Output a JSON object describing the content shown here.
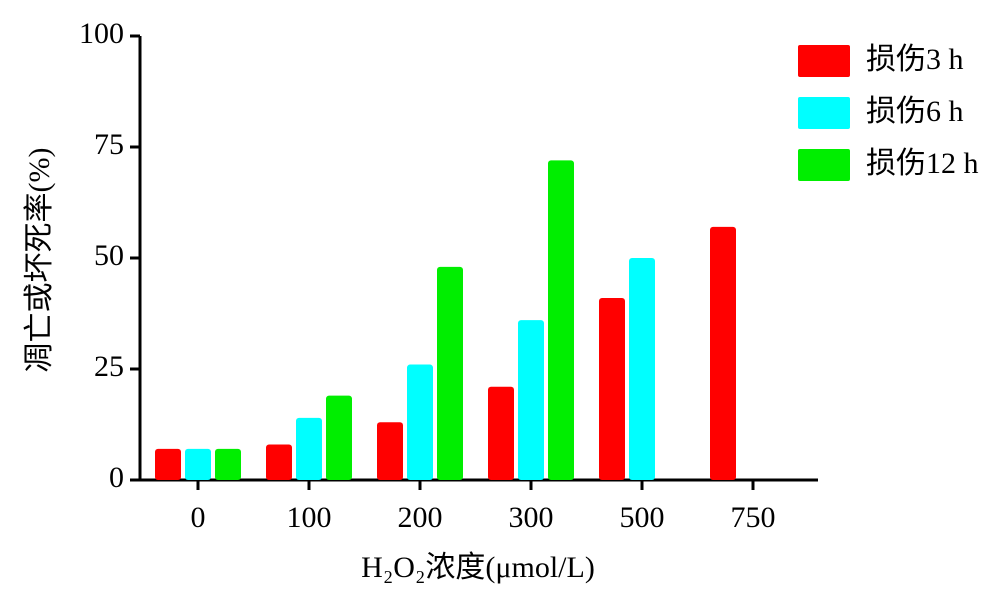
{
  "chart_data": {
    "type": "bar",
    "x_label": "H₂O₂浓度(μmol/L)",
    "y_label": "凋亡或坏死率(%)",
    "categories": [
      "0",
      "100",
      "200",
      "300",
      "500",
      "750"
    ],
    "series": [
      {
        "name": "损伤3 h",
        "color": "#ff0000",
        "values": [
          7,
          8,
          13,
          21,
          41,
          57
        ]
      },
      {
        "name": "损伤6 h",
        "color": "#00ffff",
        "values": [
          7,
          14,
          26,
          36,
          50,
          null
        ]
      },
      {
        "name": "损伤12 h",
        "color": "#00ee00",
        "values": [
          7,
          19,
          48,
          72,
          null,
          null
        ]
      }
    ],
    "ylim": [
      0,
      100
    ],
    "yticks": [
      0,
      25,
      50,
      75,
      100
    ],
    "legend": "top-right"
  }
}
